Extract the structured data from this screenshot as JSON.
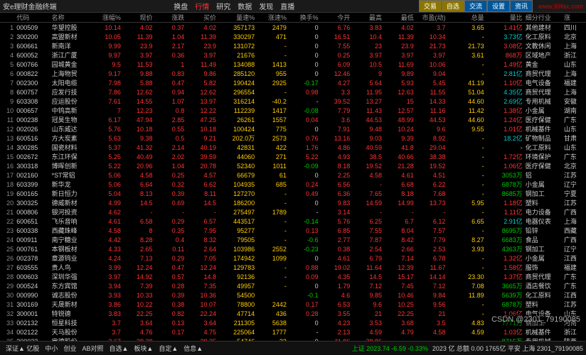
{
  "app_title": "安e理财金融终端",
  "menu": {
    "items": [
      "换盘",
      "行情",
      "研究",
      "数据",
      "发现",
      "直播"
    ],
    "active_index": 1
  },
  "right_buttons": [
    "交易",
    "自选",
    "交流",
    "设置",
    "资讯"
  ],
  "logo_text": "www.99fax.com",
  "columns": [
    "",
    "代码",
    "名称",
    "涨幅%",
    "现价",
    "涨跌",
    "买价",
    "量速%",
    "涨速%",
    "换手%",
    "今开",
    "最高",
    "最低",
    "市盈(动)",
    "总量",
    "量比",
    "细分行业",
    "涨"
  ],
  "col_align": [
    "r",
    "l",
    "l",
    "r",
    "r",
    "r",
    "r",
    "r",
    "r",
    "r",
    "r",
    "r",
    "r",
    "r",
    "r",
    "r",
    "l",
    "l"
  ],
  "rows": [
    {
      "n": 1,
      "code": "000509",
      "name": "华望控股",
      "pct": 10.14,
      "price": 4.02,
      "chg": 0.37,
      "bid": 4.02,
      "vs": 357173,
      "sp": 2479,
      "to": 0.0,
      "op": 6.76,
      "hi": "3.83",
      "lo": 4.02,
      "pe": 3.7,
      "vol": "3.65",
      "amt": "630.16",
      "lb": "1.41亿",
      "cat": "其他建材",
      "reg": "四川",
      "dir": "up",
      "lbc": "up"
    },
    {
      "n": 2,
      "code": "300200",
      "name": "高盟新材",
      "pct": 10.05,
      "price": 11.39,
      "chg": 1.04,
      "bid": 11.39,
      "vs": "330297",
      "sp": 471,
      "to": 0.0,
      "op": 16.51,
      "hi": 10.4,
      "lo": 11.39,
      "pe": 10.34,
      "vol": "-",
      "amt": "62.80",
      "lb": "3.73亿",
      "cat": "化工原料",
      "reg": "北京",
      "dir": "up",
      "lbc": "cyan"
    },
    {
      "n": 3,
      "code": "600661",
      "name": "新南洋",
      "pct": 9.99,
      "price": 23.9,
      "chg": 2.17,
      "bid": 23.9,
      "vs": "131072",
      "sp": "-",
      "to": 0.0,
      "op": 7.55,
      "hi": 23.0,
      "lo": 23.9,
      "pe": 21.73,
      "vol": "21.73",
      "amt": "1342.98",
      "lb": "3.08亿",
      "cat": "文教休闲",
      "reg": "上海",
      "dir": "up",
      "lbc": "up"
    },
    {
      "n": 4,
      "code": "600052",
      "name": "浙江广厦",
      "pct": 9.97,
      "price": 3.97,
      "chg": 0.36,
      "bid": 3.97,
      "vs": 21676,
      "sp": "-",
      "to": 0.0,
      "op": 0.25,
      "hi": 3.97,
      "lo": 3.97,
      "pe": 3.97,
      "vol": "3.61",
      "amt": "-",
      "lb": "868万",
      "cat": "区域地产",
      "reg": "浙江",
      "dir": "up",
      "lbc": "up"
    },
    {
      "n": 5,
      "code": "600766",
      "name": "园城黄金",
      "pct": 9.5,
      "price": 11.53,
      "chg": 1.0,
      "bid": 11.49,
      "vs": "134088",
      "sp": 1413,
      "to": 0.0,
      "op": 6.09,
      "hi": 10.5,
      "lo": 11.69,
      "pe": 10.06,
      "vol": "-",
      "amt": "159.73",
      "lb": "1.49亿",
      "cat": "黄金",
      "reg": "山东",
      "dir": "up",
      "lbc": "up"
    },
    {
      "n": 6,
      "code": "000822",
      "name": "上海物贸",
      "pct": 9.17,
      "price": 9.88,
      "chg": 0.83,
      "bid": 9.86,
      "vs": 285120,
      "sp": "955",
      "to": 0.0,
      "op": 12.46,
      "hi": 9.0,
      "lo": 9.89,
      "pe": 9.04,
      "vol": "-",
      "amt": "167.14",
      "lb": "2.81亿",
      "cat": "商贸代理",
      "reg": "上海",
      "dir": "up",
      "lbc": "cyan"
    },
    {
      "n": 7,
      "code": "002300",
      "name": "太阳电缆",
      "pct": 7.98,
      "price": 5.88,
      "chg": 0.47,
      "bid": 5.82,
      "vs": "190424",
      "sp": 2925,
      "to": -0.17,
      "op": 4.27,
      "hi": 5.64,
      "lo": 5.93,
      "pe": 5.45,
      "vol": "41.19",
      "amt": "51.99",
      "lb": "1.10亿",
      "cat": "电气设备",
      "reg": "福建",
      "dir": "up",
      "lbc": "up"
    },
    {
      "n": 8,
      "code": "600757",
      "name": "应发行技",
      "pct": 7.86,
      "price": 12.62,
      "chg": 0.94,
      "bid": 12.62,
      "vs": "296554",
      "sp": "-",
      "to": 0.98,
      "op": 3.3,
      "hi": 11.95,
      "lo": 12.63,
      "pe": 11.55,
      "vol": "51.04",
      "amt": "33240.10",
      "lb": "4.35亿",
      "cat": "商贸代理",
      "reg": "上海",
      "dir": "up",
      "lbc": "cyan"
    },
    {
      "n": 9,
      "code": "603308",
      "name": "应运股份",
      "pct": 7.61,
      "price": 14.55,
      "chg": 1.07,
      "bid": 13.97,
      "vs": "316214",
      "sp": "-40.2",
      "to": "-",
      "op": 39.52,
      "hi": 13.27,
      "lo": 15.0,
      "pe": 14.33,
      "vol": "44.60",
      "amt": "-",
      "lb": "2.69亿",
      "cat": "专用机械",
      "reg": "安徽",
      "dir": "up",
      "lbc": "cyan"
    },
    {
      "n": 10,
      "code": "000657",
      "name": "中钨高新",
      "pct": 7.0,
      "price": 12.23,
      "chg": 0.8,
      "bid": 12.22,
      "vs": 112239,
      "sp": 1417,
      "to": -0.08,
      "op": 7.79,
      "hi": 11.43,
      "lo": 12.57,
      "pe": 11.16,
      "vol": "11.42",
      "amt": "-",
      "lb": "1.38亿",
      "cat": "小金属",
      "reg": "湖南",
      "dir": "up",
      "lbc": "up"
    },
    {
      "n": 11,
      "code": "000238",
      "name": "冠昊生物",
      "pct": 6.17,
      "price": 47.94,
      "chg": 2.85,
      "bid": 47.25,
      "vs": "26261",
      "sp": "1557",
      "to": 0.04,
      "op": 3.6,
      "hi": 44.53,
      "lo": 48.99,
      "pe": 44.53,
      "vol": "44.60",
      "amt": "173.82",
      "lb": "1.24亿",
      "cat": "医疗保健",
      "reg": "广东",
      "dir": "up",
      "lbc": "up"
    },
    {
      "n": 12,
      "code": "002026",
      "name": "山东威达",
      "pct": 5.76,
      "price": 10.18,
      "chg": 0.55,
      "bid": 10.18,
      "vs": "100424",
      "sp": 775,
      "to": 0.0,
      "op": 7.91,
      "hi": 9.48,
      "lo": 10.24,
      "pe": 9.6,
      "vol": "9.55",
      "amt": "13.23",
      "lb": "1.01亿",
      "cat": "机械基件",
      "reg": "山东",
      "dir": "up",
      "lbc": "up"
    },
    {
      "n": 13,
      "code": "600516",
      "name": "方大炭素",
      "pct": 5.63,
      "price": 9.38,
      "chg": 0.5,
      "bid": 9.21,
      "vs": "202.0万",
      "sp": "2573",
      "to": 0.76,
      "op": 13.16,
      "hi": 9.03,
      "lo": 9.39,
      "pe": 8.92,
      "vol": "-",
      "amt": "30.56",
      "lb": "18.2亿",
      "cat": "矿物制品",
      "reg": "甘肃",
      "dir": "up",
      "lbc": "cyan"
    },
    {
      "n": 14,
      "code": "300285",
      "name": "国瓷材料",
      "pct": 5.37,
      "price": 41.32,
      "chg": 2.14,
      "bid": 40.19,
      "vs": "42831",
      "sp": 422,
      "to": 1.76,
      "op": 4.86,
      "hi": 40.59,
      "lo": 41.8,
      "pe": 29.04,
      "vol": "-",
      "amt": "100.12",
      "lb": "-",
      "cat": "化工原料",
      "reg": "山东",
      "dir": "up",
      "lbc": "flat"
    },
    {
      "n": 15,
      "code": "002672",
      "name": "东江环保",
      "pct": 5.25,
      "price": 40.49,
      "chg": 2.02,
      "bid": 39.59,
      "vs": "44060",
      "sp": 271,
      "to": 5.22,
      "op": 4.93,
      "hi": 38.5,
      "lo": 40.66,
      "pe": 38.38,
      "vol": "-",
      "amt": "41.08",
      "lb": "1.72亿",
      "cat": "环境保护",
      "reg": "广东",
      "dir": "up",
      "lbc": "up"
    },
    {
      "n": 16,
      "code": "300318",
      "name": "博晖创新",
      "pct": 5.22,
      "price": 20.96,
      "chg": 1.04,
      "bid": 20.78,
      "vs": "52340",
      "sp": 1011,
      "to": -0.09,
      "op": 8.18,
      "hi": 19.52,
      "lo": 21.28,
      "pe": 19.52,
      "vol": "-",
      "amt": "-",
      "lb": "1.06亿",
      "cat": "医疗保健",
      "reg": "北京",
      "dir": "up",
      "lbc": "up"
    },
    {
      "n": 17,
      "code": "002160",
      "name": "*ST常铝",
      "pct": 5.06,
      "price": 4.58,
      "chg": 0.25,
      "bid": 4.57,
      "vs": "66679",
      "sp": 61,
      "to": 0.0,
      "op": 2.25,
      "hi": 4.58,
      "lo": 4.61,
      "pe": 4.51,
      "vol": "-",
      "amt": "-",
      "lb": "3053万",
      "cat": "铝",
      "reg": "江苏",
      "dir": "up",
      "lbc": "down"
    },
    {
      "n": 18,
      "code": "603399",
      "name": "新华龙",
      "pct": 5.06,
      "price": 6.64,
      "chg": 0.32,
      "bid": 6.62,
      "vs": "104935",
      "sp": 685,
      "to": 0.24,
      "op": 6.56,
      "hi": "-",
      "lo": 6.68,
      "pe": 6.22,
      "vol": "-",
      "amt": "-",
      "lb": "6878万",
      "cat": "小金属",
      "reg": "辽宁",
      "dir": "up",
      "lbc": "down"
    },
    {
      "n": 19,
      "code": "600165",
      "name": "新日恒力",
      "pct": 5.04,
      "price": 8.13,
      "chg": 0.39,
      "bid": 8.11,
      "vs": "127270",
      "sp": "-",
      "to": 0.49,
      "op": 6.36,
      "hi": 7.65,
      "lo": 8.18,
      "pe": 7.68,
      "vol": "-",
      "amt": "8.02",
      "lb": "8685万",
      "cat": "钢加工",
      "reg": "宁夏",
      "dir": "up",
      "lbc": "down"
    },
    {
      "n": 20,
      "code": "300325",
      "name": "德威新材",
      "pct": 4.99,
      "price": 14.5,
      "chg": 0.69,
      "bid": 14.5,
      "vs": "186200",
      "sp": "-",
      "to": 0.0,
      "op": 9.83,
      "hi": 14.59,
      "lo": 14.99,
      "pe": 13.73,
      "vol": "5.95",
      "amt": "56.02",
      "lb": "1.18亿",
      "cat": "塑料",
      "reg": "江苏",
      "dir": "up",
      "lbc": "up"
    },
    {
      "n": 21,
      "code": "000806",
      "name": "银河投资",
      "pct": 4.62,
      "price": "-",
      "chg": "-",
      "bid": "-",
      "vs": "275497",
      "sp": 1789,
      "to": "-",
      "op": 3.14,
      "hi": "-",
      "lo": "-",
      "pe": "-",
      "vol": "-",
      "amt": "-",
      "lb": "1.11亿",
      "cat": "电力设备",
      "reg": "广西",
      "dir": "up",
      "lbc": "up"
    },
    {
      "n": 22,
      "code": "600651",
      "name": "飞乐音响",
      "pct": 4.61,
      "price": 6.58,
      "chg": 0.29,
      "bid": 6.57,
      "vs": "443517",
      "sp": "-",
      "to": -0.14,
      "op": 5.76,
      "hi": 6.25,
      "lo": 6.7,
      "pe": 6.12,
      "vol": "6.65",
      "amt": "254.99",
      "lb": "2.91亿",
      "cat": "电器仪表",
      "reg": "上海",
      "dir": "up",
      "lbc": "cyan"
    },
    {
      "n": 23,
      "code": "600338",
      "name": "西藏珠峰",
      "pct": 4.58,
      "price": 8.0,
      "chg": 0.35,
      "bid": 7.95,
      "vs": "95277",
      "sp": "-",
      "to": 0.13,
      "op": 6.85,
      "hi": 7.55,
      "lo": 8.04,
      "pe": 7.57,
      "vol": "-",
      "amt": "98.04",
      "lb": "8695万",
      "cat": "铅锌",
      "reg": "西藏",
      "dir": "up",
      "lbc": "down"
    },
    {
      "n": 24,
      "code": "000911",
      "name": "南宁糖业",
      "pct": 4.42,
      "price": 8.28,
      "chg": 0.4,
      "bid": 8.32,
      "vs": "79505",
      "sp": "-",
      "to": -0.6,
      "op": 2.77,
      "hi": 7.87,
      "lo": 8.42,
      "pe": 7.79,
      "vol": "8.27",
      "amt": "-",
      "lb": "6683万",
      "cat": "食品",
      "reg": "广西",
      "dir": "up",
      "lbc": "down"
    },
    {
      "n": 25,
      "code": "000761",
      "name": "本钢板材",
      "pct": 4.33,
      "price": 2.65,
      "chg": 0.11,
      "bid": 2.64,
      "vs": "103986",
      "sp": 2552,
      "to": -0.23,
      "op": 0.38,
      "hi": 2.54,
      "lo": 2.66,
      "pe": 2.53,
      "vol": "3.93",
      "amt": "28.19",
      "lb": "4363万",
      "cat": "钢加工",
      "reg": "辽宁",
      "dir": "up",
      "lbc": "down"
    },
    {
      "n": 26,
      "code": "002378",
      "name": "章源钨业",
      "pct": 4.24,
      "price": 7.13,
      "chg": 0.29,
      "bid": 7.05,
      "vs": "174942",
      "sp": 1099,
      "to": 0.0,
      "op": 4.61,
      "hi": 6.79,
      "lo": 7.14,
      "pe": 6.78,
      "vol": "-",
      "amt": "126.96",
      "lb": "1.32亿",
      "cat": "小金属",
      "reg": "江西",
      "dir": "up",
      "lbc": "up"
    },
    {
      "n": 27,
      "code": "603555",
      "name": "贵人鸟",
      "pct": 3.99,
      "price": 12.24,
      "chg": 0.47,
      "bid": 12.24,
      "vs": "129783",
      "sp": "-",
      "to": 0.88,
      "op": 19.02,
      "hi": 11.64,
      "lo": 12.39,
      "pe": 11.67,
      "vol": "-",
      "amt": "24.40",
      "lb": "1.58亿",
      "cat": "服饰",
      "reg": "福建",
      "dir": "up",
      "lbc": "up"
    },
    {
      "n": 28,
      "code": "000603",
      "name": "深圳华强",
      "pct": 3.97,
      "price": 14.92,
      "chg": 0.57,
      "bid": 14.8,
      "vs": "92136",
      "sp": "-",
      "to": "0.09",
      "op": 4.35,
      "hi": 14.5,
      "lo": 15.17,
      "pe": 14.14,
      "vol": "23.30",
      "amt": "39.12",
      "lb": "1.37亿",
      "cat": "商贸代理",
      "reg": "广东",
      "dir": "up",
      "lbc": "up"
    },
    {
      "n": 29,
      "code": "000524",
      "name": "东方宾馆",
      "pct": 3.94,
      "price": 7.39,
      "chg": 0.28,
      "bid": 7.35,
      "vs": "49957",
      "sp": "-",
      "to": 0.0,
      "op": 1.79,
      "hi": 7.12,
      "lo": 7.45,
      "pe": 7.12,
      "vol": "7.08",
      "amt": "214.10",
      "lb": "3665万",
      "cat": "酒店餐饮",
      "reg": "广东",
      "dir": "up",
      "lbc": "down"
    },
    {
      "n": 30,
      "code": "000990",
      "name": "诚志股份",
      "pct": 3.93,
      "price": 10.33,
      "chg": 0.39,
      "bid": 10.36,
      "vs": "54500",
      "sp": "",
      "to": -0.1,
      "op": 4.6,
      "hi": 9.85,
      "lo": 10.46,
      "pe": 9.84,
      "vol": "11.89",
      "amt": "242.91",
      "lb": "5639万",
      "cat": "化工原料",
      "reg": "江西",
      "dir": "up",
      "lbc": "down"
    },
    {
      "n": 31,
      "code": "300169",
      "name": "天晟新材",
      "pct": 3.86,
      "price": 10.22,
      "chg": 0.38,
      "bid": 10.07,
      "vs": "78800",
      "sp": 2442,
      "to": 0.17,
      "op": 6.53,
      "hi": 9.6,
      "lo": 10.25,
      "pe": 9.56,
      "vol": "-",
      "amt": "391.47",
      "lb": "6878万",
      "cat": "塑料",
      "reg": "江苏",
      "dir": "up",
      "lbc": "down"
    },
    {
      "n": 32,
      "code": "300001",
      "name": "特锐德",
      "pct": 3.83,
      "price": 22.25,
      "chg": 0.82,
      "bid": 22.24,
      "vs": "47714",
      "sp": 436,
      "to": 0.28,
      "op": 3.55,
      "hi": 21.0,
      "lo": 22.25,
      "pe": 21.0,
      "vol": "-",
      "amt": "-",
      "lb": "1.06亿",
      "cat": "电气设备",
      "reg": "山东",
      "dir": "up",
      "lbc": "up"
    },
    {
      "n": 33,
      "code": "002132",
      "name": "恒星科技",
      "pct": 3.7,
      "price": 3.64,
      "chg": 0.13,
      "bid": 3.64,
      "vs": "211305",
      "sp": "5638",
      "to": 0.0,
      "op": 4.23,
      "hi": 3.53,
      "lo": 3.68,
      "pe": 3.5,
      "vol": "4.83",
      "amt": "34.23",
      "lb": "7771万",
      "cat": "钢加工",
      "reg": "河南",
      "dir": "up",
      "lbc": "down"
    },
    {
      "n": 34,
      "code": "002122",
      "name": "天马股份",
      "pct": 3.7,
      "price": 4.76,
      "chg": 0.17,
      "bid": 4.75,
      "vs": "225064",
      "sp": 1777,
      "to": "-",
      "op": 2.13,
      "hi": 4.59,
      "lo": 4.79,
      "pe": 4.58,
      "vol": "4.59",
      "amt": "-",
      "lb": "1.03亿",
      "cat": "机械基件",
      "reg": "浙江",
      "dir": "up",
      "lbc": "up"
    },
    {
      "n": 35,
      "code": "300023",
      "name": "宝德股份",
      "pct": 3.67,
      "price": 28.38,
      "chg": "-",
      "bid": 28.35,
      "vs": "54746",
      "sp": "33",
      "to": 0.0,
      "op": 11.86,
      "hi": 28.86,
      "lo": "-",
      "pe": "-",
      "vol": "-",
      "amt": "183.47",
      "lb": "8715万",
      "cat": "专用机械",
      "reg": "陕西",
      "dir": "up",
      "lbc": "down"
    }
  ],
  "footer": {
    "tabs": [
      "深证▲ 亿股",
      "中小",
      "创业",
      "AB对照",
      "自选▲",
      "板块▲",
      "自定▲",
      "信息▲"
    ],
    "status_left": "上证 2023.74 -6.59 -0.33%",
    "status_right": "2023 亿  总额 0.00  1765亿  平安 上海 2301_79190085",
    "watermark": "CSDN @2301_79190085"
  },
  "colors": {
    "up": "#ff3333",
    "down": "#00cc00",
    "flat": "#cccccc",
    "yellow": "#ffcc00",
    "cyan": "#00cccc"
  }
}
